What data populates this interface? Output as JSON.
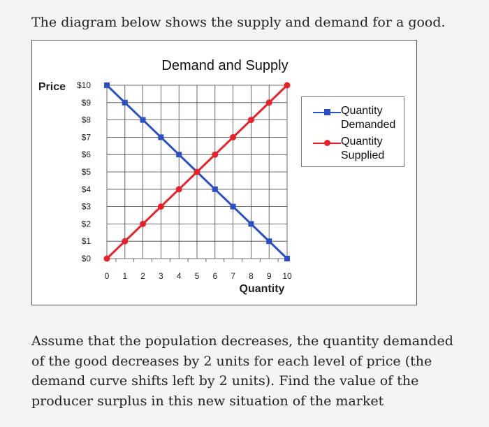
{
  "intro_text": "The diagram below shows the supply and demand for a good.",
  "question_text": "Assume that the population decreases, the quantity demanded of the good decreases by 2 units for each level of price (the demand curve shifts left by 2 units). Find the value of the producer surplus in this new situation of the market",
  "colors": {
    "demand": "#2b4fc4",
    "supply": "#e8222a",
    "grid": "#444444"
  },
  "chart_data": {
    "type": "line",
    "title": "Demand and Supply",
    "xlabel": "Quantity",
    "ylabel": "Price",
    "x_ticks": [
      "0",
      "1",
      "2",
      "3",
      "4",
      "5",
      "6",
      "7",
      "8",
      "9",
      "10"
    ],
    "y_ticks": [
      "$10",
      "$9",
      "$8",
      "$7",
      "$6",
      "$5",
      "$4",
      "$3",
      "$2",
      "$1",
      "$0"
    ],
    "xlim": [
      0,
      10
    ],
    "ylim": [
      0,
      10
    ],
    "grid": true,
    "legend_placement": "right",
    "x": [
      0,
      1,
      2,
      3,
      4,
      5,
      6,
      7,
      8,
      9,
      10
    ],
    "series": [
      {
        "name": "Quantity Demanded",
        "marker": "square",
        "color": "#2b4fc4",
        "values": [
          10,
          9,
          8,
          7,
          6,
          5,
          4,
          3,
          2,
          1,
          0
        ]
      },
      {
        "name": "Quantity Supplied",
        "marker": "circle",
        "color": "#e8222a",
        "values": [
          0,
          1,
          2,
          3,
          4,
          5,
          6,
          7,
          8,
          9,
          10
        ]
      }
    ]
  }
}
